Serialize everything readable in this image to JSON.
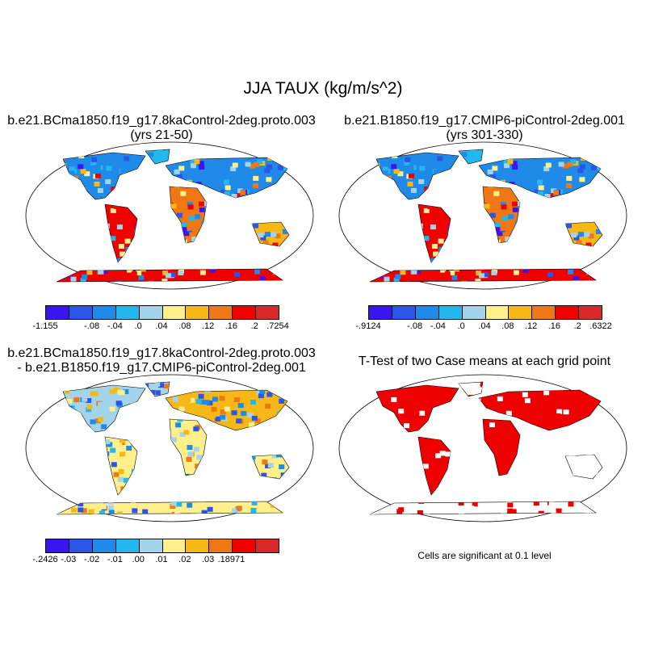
{
  "main_title": "JJA TAUX (kg/m/s^2)",
  "panels": [
    {
      "title": "b.e21.BCma1850.f19_g17.8kaControl-2deg.proto.003",
      "subtitle": "(yrs 21-50)",
      "colorbar": {
        "labels": [
          "-1.155",
          "-.08",
          "-.04",
          ".0",
          ".04",
          ".08",
          ".12",
          ".16",
          ".2",
          ".7254"
        ]
      }
    },
    {
      "title": "b.e21.B1850.f19_g17.CMIP6-piControl-2deg.001",
      "subtitle": "(yrs 301-330)",
      "colorbar": {
        "labels": [
          "-.9124",
          "-.08",
          "-.04",
          ".0",
          ".04",
          ".08",
          ".12",
          ".16",
          ".2",
          ".6322"
        ]
      }
    },
    {
      "title": "b.e21.BCma1850.f19_g17.8kaControl-2deg.proto.003",
      "subtitle": "- b.e21.B1850.f19_g17.CMIP6-piControl-2deg.001",
      "colorbar": {
        "labels": [
          "-.2426",
          "-.03",
          "-.02",
          "-.01",
          ".00",
          ".01",
          ".02",
          ".03",
          ".18971"
        ]
      }
    },
    {
      "title": "T-Test of two Case means at each grid point",
      "note": "Cells are significant at 0.1 level"
    }
  ],
  "colors": {
    "palette": [
      "#3c14f0",
      "#2a55e6",
      "#1f8ae8",
      "#22b8ef",
      "#a4d4ea",
      "#fff08c",
      "#f6b818",
      "#f07814",
      "#f00000",
      "#d82828"
    ],
    "diff_palette": [
      "#3c14f0",
      "#2a55e6",
      "#1f8ae8",
      "#22b8ef",
      "#a4d4ea",
      "#fff08c",
      "#f6b818",
      "#f07814",
      "#f00000",
      "#d82828"
    ],
    "signif": "#ee0000"
  }
}
